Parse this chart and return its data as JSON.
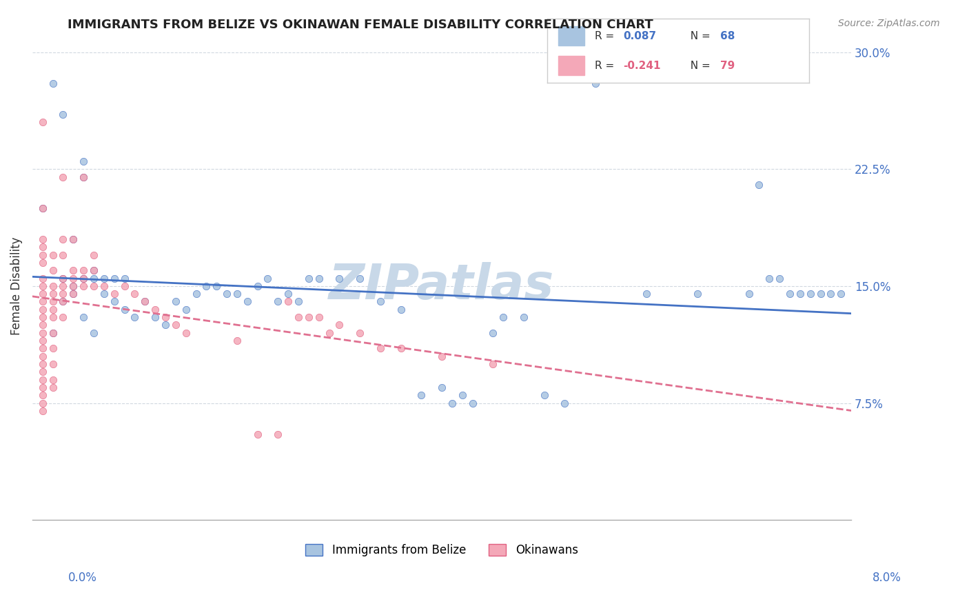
{
  "title": "IMMIGRANTS FROM BELIZE VS OKINAWAN FEMALE DISABILITY CORRELATION CHART",
  "source": "Source: ZipAtlas.com",
  "xlabel_bottom_left": "0.0%",
  "xlabel_bottom_right": "8.0%",
  "ylabel": "Female Disability",
  "xmin": 0.0,
  "xmax": 0.08,
  "ymin": 0.0,
  "ymax": 0.3,
  "yticks": [
    0.075,
    0.15,
    0.225,
    0.3
  ],
  "ytick_labels": [
    "7.5%",
    "15.0%",
    "22.5%",
    "30.0%"
  ],
  "legend_label1": "Immigrants from Belize",
  "legend_label2": "Okinawans",
  "r1": 0.087,
  "n1": 68,
  "r2": -0.241,
  "n2": 79,
  "color_blue": "#a8c4e0",
  "color_pink": "#f4a8b8",
  "color_blue_text": "#4472c4",
  "color_pink_text": "#e06080",
  "color_blue_line": "#4472c4",
  "color_pink_line": "#e07090",
  "watermark": "ZIPatlas",
  "watermark_color": "#c8d8e8",
  "background_color": "#ffffff",
  "grid_color": "#d0d8e0",
  "blue_scatter": [
    [
      0.002,
      0.12
    ],
    [
      0.003,
      0.14
    ],
    [
      0.004,
      0.18
    ],
    [
      0.005,
      0.22
    ],
    [
      0.003,
      0.26
    ],
    [
      0.001,
      0.2
    ],
    [
      0.002,
      0.28
    ],
    [
      0.004,
      0.15
    ],
    [
      0.006,
      0.16
    ],
    [
      0.004,
      0.145
    ],
    [
      0.003,
      0.155
    ],
    [
      0.005,
      0.155
    ],
    [
      0.006,
      0.155
    ],
    [
      0.007,
      0.155
    ],
    [
      0.008,
      0.155
    ],
    [
      0.009,
      0.155
    ],
    [
      0.005,
      0.13
    ],
    [
      0.006,
      0.12
    ],
    [
      0.007,
      0.145
    ],
    [
      0.008,
      0.14
    ],
    [
      0.009,
      0.135
    ],
    [
      0.01,
      0.13
    ],
    [
      0.011,
      0.14
    ],
    [
      0.012,
      0.13
    ],
    [
      0.013,
      0.125
    ],
    [
      0.014,
      0.14
    ],
    [
      0.015,
      0.135
    ],
    [
      0.016,
      0.145
    ],
    [
      0.017,
      0.15
    ],
    [
      0.018,
      0.15
    ],
    [
      0.019,
      0.145
    ],
    [
      0.02,
      0.145
    ],
    [
      0.021,
      0.14
    ],
    [
      0.022,
      0.15
    ],
    [
      0.023,
      0.155
    ],
    [
      0.024,
      0.14
    ],
    [
      0.025,
      0.145
    ],
    [
      0.026,
      0.14
    ],
    [
      0.027,
      0.155
    ],
    [
      0.028,
      0.155
    ],
    [
      0.005,
      0.23
    ],
    [
      0.03,
      0.155
    ],
    [
      0.032,
      0.155
    ],
    [
      0.034,
      0.14
    ],
    [
      0.036,
      0.135
    ],
    [
      0.038,
      0.08
    ],
    [
      0.04,
      0.085
    ],
    [
      0.041,
      0.075
    ],
    [
      0.042,
      0.08
    ],
    [
      0.043,
      0.075
    ],
    [
      0.045,
      0.12
    ],
    [
      0.046,
      0.13
    ],
    [
      0.048,
      0.13
    ],
    [
      0.05,
      0.08
    ],
    [
      0.052,
      0.075
    ],
    [
      0.055,
      0.28
    ],
    [
      0.06,
      0.145
    ],
    [
      0.065,
      0.145
    ],
    [
      0.07,
      0.145
    ],
    [
      0.071,
      0.215
    ],
    [
      0.072,
      0.155
    ],
    [
      0.073,
      0.155
    ],
    [
      0.074,
      0.145
    ],
    [
      0.075,
      0.145
    ],
    [
      0.076,
      0.145
    ],
    [
      0.077,
      0.145
    ],
    [
      0.078,
      0.145
    ],
    [
      0.079,
      0.145
    ]
  ],
  "pink_scatter": [
    [
      0.001,
      0.255
    ],
    [
      0.001,
      0.2
    ],
    [
      0.001,
      0.18
    ],
    [
      0.001,
      0.175
    ],
    [
      0.001,
      0.17
    ],
    [
      0.001,
      0.165
    ],
    [
      0.001,
      0.155
    ],
    [
      0.001,
      0.15
    ],
    [
      0.001,
      0.145
    ],
    [
      0.001,
      0.14
    ],
    [
      0.001,
      0.135
    ],
    [
      0.001,
      0.13
    ],
    [
      0.001,
      0.125
    ],
    [
      0.001,
      0.12
    ],
    [
      0.001,
      0.115
    ],
    [
      0.001,
      0.11
    ],
    [
      0.001,
      0.105
    ],
    [
      0.001,
      0.1
    ],
    [
      0.001,
      0.095
    ],
    [
      0.001,
      0.09
    ],
    [
      0.001,
      0.085
    ],
    [
      0.001,
      0.08
    ],
    [
      0.001,
      0.075
    ],
    [
      0.001,
      0.07
    ],
    [
      0.002,
      0.17
    ],
    [
      0.002,
      0.16
    ],
    [
      0.002,
      0.15
    ],
    [
      0.002,
      0.145
    ],
    [
      0.002,
      0.14
    ],
    [
      0.002,
      0.135
    ],
    [
      0.002,
      0.13
    ],
    [
      0.002,
      0.12
    ],
    [
      0.002,
      0.11
    ],
    [
      0.002,
      0.1
    ],
    [
      0.002,
      0.09
    ],
    [
      0.002,
      0.085
    ],
    [
      0.003,
      0.22
    ],
    [
      0.003,
      0.18
    ],
    [
      0.003,
      0.17
    ],
    [
      0.003,
      0.155
    ],
    [
      0.003,
      0.15
    ],
    [
      0.003,
      0.145
    ],
    [
      0.003,
      0.14
    ],
    [
      0.003,
      0.13
    ],
    [
      0.004,
      0.18
    ],
    [
      0.004,
      0.16
    ],
    [
      0.004,
      0.155
    ],
    [
      0.004,
      0.15
    ],
    [
      0.004,
      0.145
    ],
    [
      0.005,
      0.22
    ],
    [
      0.005,
      0.16
    ],
    [
      0.005,
      0.155
    ],
    [
      0.005,
      0.15
    ],
    [
      0.006,
      0.17
    ],
    [
      0.006,
      0.16
    ],
    [
      0.006,
      0.15
    ],
    [
      0.007,
      0.15
    ],
    [
      0.008,
      0.145
    ],
    [
      0.009,
      0.15
    ],
    [
      0.01,
      0.145
    ],
    [
      0.011,
      0.14
    ],
    [
      0.012,
      0.135
    ],
    [
      0.013,
      0.13
    ],
    [
      0.014,
      0.125
    ],
    [
      0.015,
      0.12
    ],
    [
      0.02,
      0.115
    ],
    [
      0.022,
      0.055
    ],
    [
      0.024,
      0.055
    ],
    [
      0.025,
      0.14
    ],
    [
      0.026,
      0.13
    ],
    [
      0.027,
      0.13
    ],
    [
      0.028,
      0.13
    ],
    [
      0.029,
      0.12
    ],
    [
      0.03,
      0.125
    ],
    [
      0.032,
      0.12
    ],
    [
      0.034,
      0.11
    ],
    [
      0.036,
      0.11
    ],
    [
      0.04,
      0.105
    ],
    [
      0.045,
      0.1
    ]
  ]
}
